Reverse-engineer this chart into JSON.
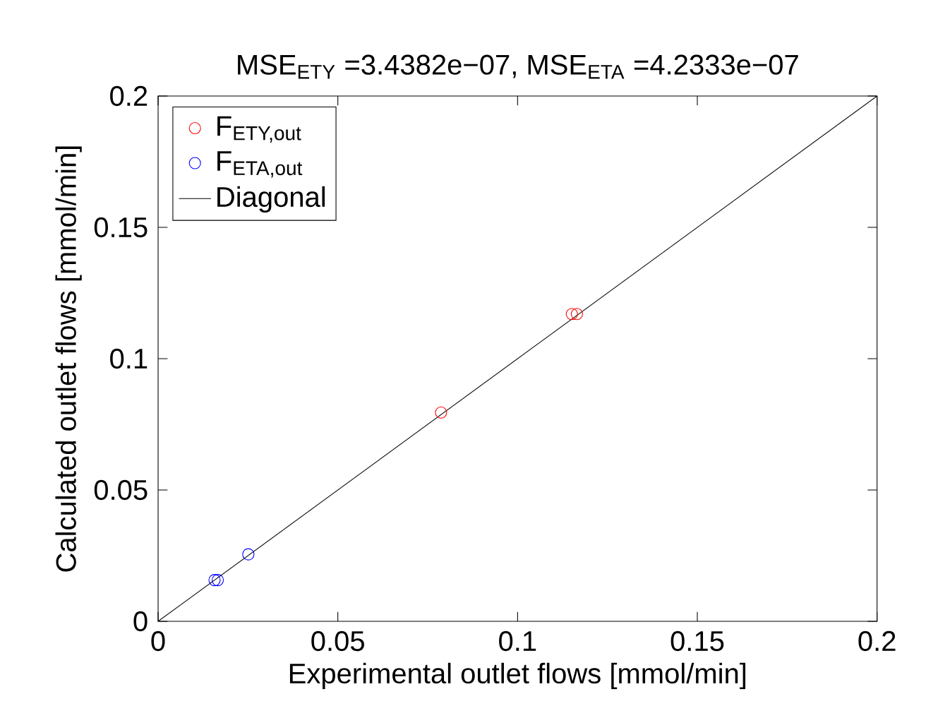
{
  "chart_data": {
    "type": "scatter",
    "title": "MSE$_{ETY}$ =3.4382e−07, MSE$_{ETA}$ =4.2333e−07",
    "xlabel": "Experimental outlet flows [mmol/min]",
    "ylabel": "Calculated outlet flows [mmol/min]",
    "xlim": [
      0,
      0.2
    ],
    "ylim": [
      0,
      0.2
    ],
    "xticks": [
      0,
      0.05,
      0.1,
      0.15,
      0.2
    ],
    "yticks": [
      0,
      0.05,
      0.1,
      0.15,
      0.2
    ],
    "legend": "top left",
    "grid": false,
    "series": [
      {
        "name": "F$_{ETY,out}$",
        "marker": "circle",
        "color": "#ff0000",
        "x": [
          0.1151,
          0.1165,
          0.0787
        ],
        "values": [
          0.117,
          0.117,
          0.0795
        ]
      },
      {
        "name": "F$_{ETA,out}$",
        "marker": "circle",
        "color": "#0000ff",
        "x": [
          0.0157,
          0.0166,
          0.0251
        ],
        "values": [
          0.0157,
          0.0157,
          0.0255
        ]
      },
      {
        "name": "Diagonal",
        "type": "line",
        "marker": "none",
        "line_style": "solid",
        "color": "#000000",
        "x": [
          0,
          0.2
        ],
        "values": [
          0,
          0.2
        ]
      }
    ]
  }
}
